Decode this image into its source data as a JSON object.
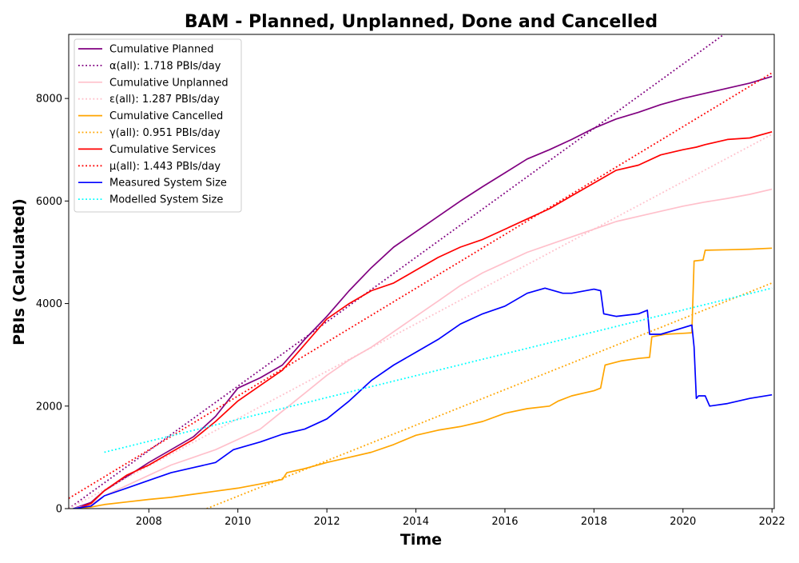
{
  "chart_data": {
    "type": "line",
    "title": "BAM - Planned, Unplanned, Done  and Cancelled",
    "xlabel": "Time",
    "ylabel": "PBIs (Calculated)",
    "xlim": [
      2006.2,
      2022.05
    ],
    "ylim": [
      0,
      9250
    ],
    "x_ticks": [
      2008,
      2010,
      2012,
      2014,
      2016,
      2018,
      2020,
      2022
    ],
    "y_ticks": [
      0,
      2000,
      4000,
      6000,
      8000
    ],
    "grid": false,
    "legend_position": "top-left",
    "series": [
      {
        "name": "Cumulative Planned",
        "color": "#800080",
        "style": "solid",
        "x": [
          2006.3,
          2006.7,
          2007.0,
          2007.5,
          2008.0,
          2008.5,
          2009.0,
          2009.5,
          2010.0,
          2010.5,
          2011.0,
          2011.5,
          2012.0,
          2012.5,
          2013.0,
          2013.5,
          2014.0,
          2014.5,
          2015.0,
          2015.5,
          2016.0,
          2016.5,
          2017.0,
          2017.5,
          2018.0,
          2018.5,
          2019.0,
          2019.5,
          2020.0,
          2020.5,
          2021.0,
          2021.5,
          2022.0
        ],
        "y": [
          0,
          120,
          350,
          620,
          900,
          1150,
          1400,
          1800,
          2350,
          2550,
          2800,
          3300,
          3750,
          4250,
          4700,
          5100,
          5400,
          5700,
          6000,
          6280,
          6550,
          6820,
          7000,
          7200,
          7420,
          7600,
          7730,
          7880,
          8000,
          8100,
          8200,
          8300,
          8430
        ]
      },
      {
        "name": "α(all): 1.718 PBIs/day",
        "color": "#800080",
        "style": "dotted",
        "x": [
          2006.2,
          2021.0
        ],
        "y": [
          0,
          9300
        ]
      },
      {
        "name": "Cumulative Unplanned",
        "color": "#ffc0cb",
        "style": "solid",
        "x": [
          2006.3,
          2006.7,
          2007.0,
          2007.5,
          2008.0,
          2008.5,
          2009.0,
          2009.5,
          2010.0,
          2010.5,
          2011.0,
          2011.5,
          2012.0,
          2012.5,
          2013.0,
          2013.5,
          2014.0,
          2014.5,
          2015.0,
          2015.5,
          2016.0,
          2016.5,
          2017.0,
          2017.5,
          2018.0,
          2018.5,
          2019.0,
          2019.5,
          2020.0,
          2020.5,
          2021.0,
          2021.5,
          2022.0
        ],
        "y": [
          0,
          80,
          250,
          450,
          650,
          850,
          1000,
          1150,
          1350,
          1550,
          1900,
          2250,
          2600,
          2900,
          3150,
          3450,
          3750,
          4050,
          4350,
          4600,
          4800,
          5000,
          5150,
          5300,
          5450,
          5600,
          5700,
          5800,
          5900,
          5980,
          6050,
          6130,
          6230
        ]
      },
      {
        "name": "ε(all): 1.287 PBIs/day",
        "color": "#ffc0cb",
        "style": "dotted",
        "x": [
          2006.2,
          2022.0
        ],
        "y": [
          0,
          7300
        ]
      },
      {
        "name": "Cumulative Cancelled",
        "color": "#ffa500",
        "style": "solid",
        "x": [
          2006.3,
          2006.7,
          2007.0,
          2007.5,
          2008.0,
          2008.5,
          2009.0,
          2009.5,
          2010.0,
          2010.5,
          2011.0,
          2011.1,
          2011.5,
          2012.0,
          2012.5,
          2013.0,
          2013.5,
          2014.0,
          2014.5,
          2015.0,
          2015.5,
          2016.0,
          2016.5,
          2017.0,
          2017.2,
          2017.5,
          2018.0,
          2018.15,
          2018.25,
          2018.6,
          2019.0,
          2019.25,
          2019.3,
          2019.6,
          2020.0,
          2020.2,
          2020.25,
          2020.45,
          2020.5,
          2021.0,
          2021.5,
          2022.0
        ],
        "y": [
          0,
          30,
          80,
          130,
          180,
          220,
          280,
          340,
          400,
          480,
          570,
          700,
          780,
          900,
          1000,
          1100,
          1250,
          1430,
          1530,
          1600,
          1700,
          1860,
          1950,
          2000,
          2100,
          2200,
          2300,
          2350,
          2800,
          2880,
          2930,
          2950,
          3350,
          3400,
          3420,
          3430,
          4830,
          4850,
          5040,
          5050,
          5060,
          5080
        ]
      },
      {
        "name": "γ(all): 0.951 PBIs/day",
        "color": "#ffa500",
        "style": "dotted",
        "x": [
          2009.3,
          2022.0
        ],
        "y": [
          0,
          4400
        ]
      },
      {
        "name": "Cumulative Services",
        "color": "#ff0000",
        "style": "solid",
        "x": [
          2006.4,
          2006.7,
          2007.0,
          2007.5,
          2008.0,
          2008.5,
          2009.0,
          2009.5,
          2010.0,
          2010.5,
          2011.0,
          2011.5,
          2012.0,
          2012.5,
          2013.0,
          2013.5,
          2014.0,
          2014.5,
          2015.0,
          2015.5,
          2016.0,
          2016.5,
          2017.0,
          2017.5,
          2018.0,
          2018.5,
          2019.0,
          2019.5,
          2020.0,
          2020.3,
          2020.5,
          2021.0,
          2021.5,
          2022.0
        ],
        "y": [
          0,
          100,
          350,
          650,
          850,
          1100,
          1350,
          1700,
          2100,
          2400,
          2700,
          3200,
          3700,
          4000,
          4250,
          4400,
          4650,
          4900,
          5100,
          5250,
          5450,
          5650,
          5850,
          6100,
          6350,
          6600,
          6700,
          6900,
          7000,
          7050,
          7100,
          7200,
          7230,
          7350
        ]
      },
      {
        "name": "μ(all): 1.443 PBIs/day",
        "color": "#ff0000",
        "style": "dotted",
        "x": [
          2006.2,
          2022.0
        ],
        "y": [
          200,
          8500
        ]
      },
      {
        "name": "Measured System Size",
        "color": "#0000ff",
        "style": "solid",
        "x": [
          2006.3,
          2006.7,
          2007.0,
          2007.5,
          2008.0,
          2008.5,
          2009.0,
          2009.5,
          2009.9,
          2010.1,
          2010.5,
          2011.0,
          2011.5,
          2012.0,
          2012.5,
          2013.0,
          2013.5,
          2014.0,
          2014.5,
          2015.0,
          2015.5,
          2016.0,
          2016.5,
          2016.9,
          2017.3,
          2017.5,
          2018.0,
          2018.15,
          2018.22,
          2018.5,
          2019.0,
          2019.2,
          2019.25,
          2019.5,
          2019.9,
          2020.2,
          2020.25,
          2020.3,
          2020.35,
          2020.5,
          2020.6,
          2021.0,
          2021.5,
          2022.0
        ],
        "y": [
          0,
          50,
          250,
          400,
          550,
          700,
          800,
          900,
          1150,
          1200,
          1300,
          1450,
          1550,
          1750,
          2100,
          2500,
          2800,
          3050,
          3300,
          3600,
          3800,
          3950,
          4200,
          4300,
          4200,
          4200,
          4280,
          4250,
          3800,
          3750,
          3800,
          3870,
          3400,
          3400,
          3500,
          3580,
          3150,
          2150,
          2200,
          2200,
          2000,
          2050,
          2150,
          2220
        ]
      },
      {
        "name": "Modelled System Size",
        "color": "#00ffff",
        "style": "dotted",
        "x": [
          2007.0,
          2022.0
        ],
        "y": [
          1100,
          4300
        ]
      }
    ]
  }
}
